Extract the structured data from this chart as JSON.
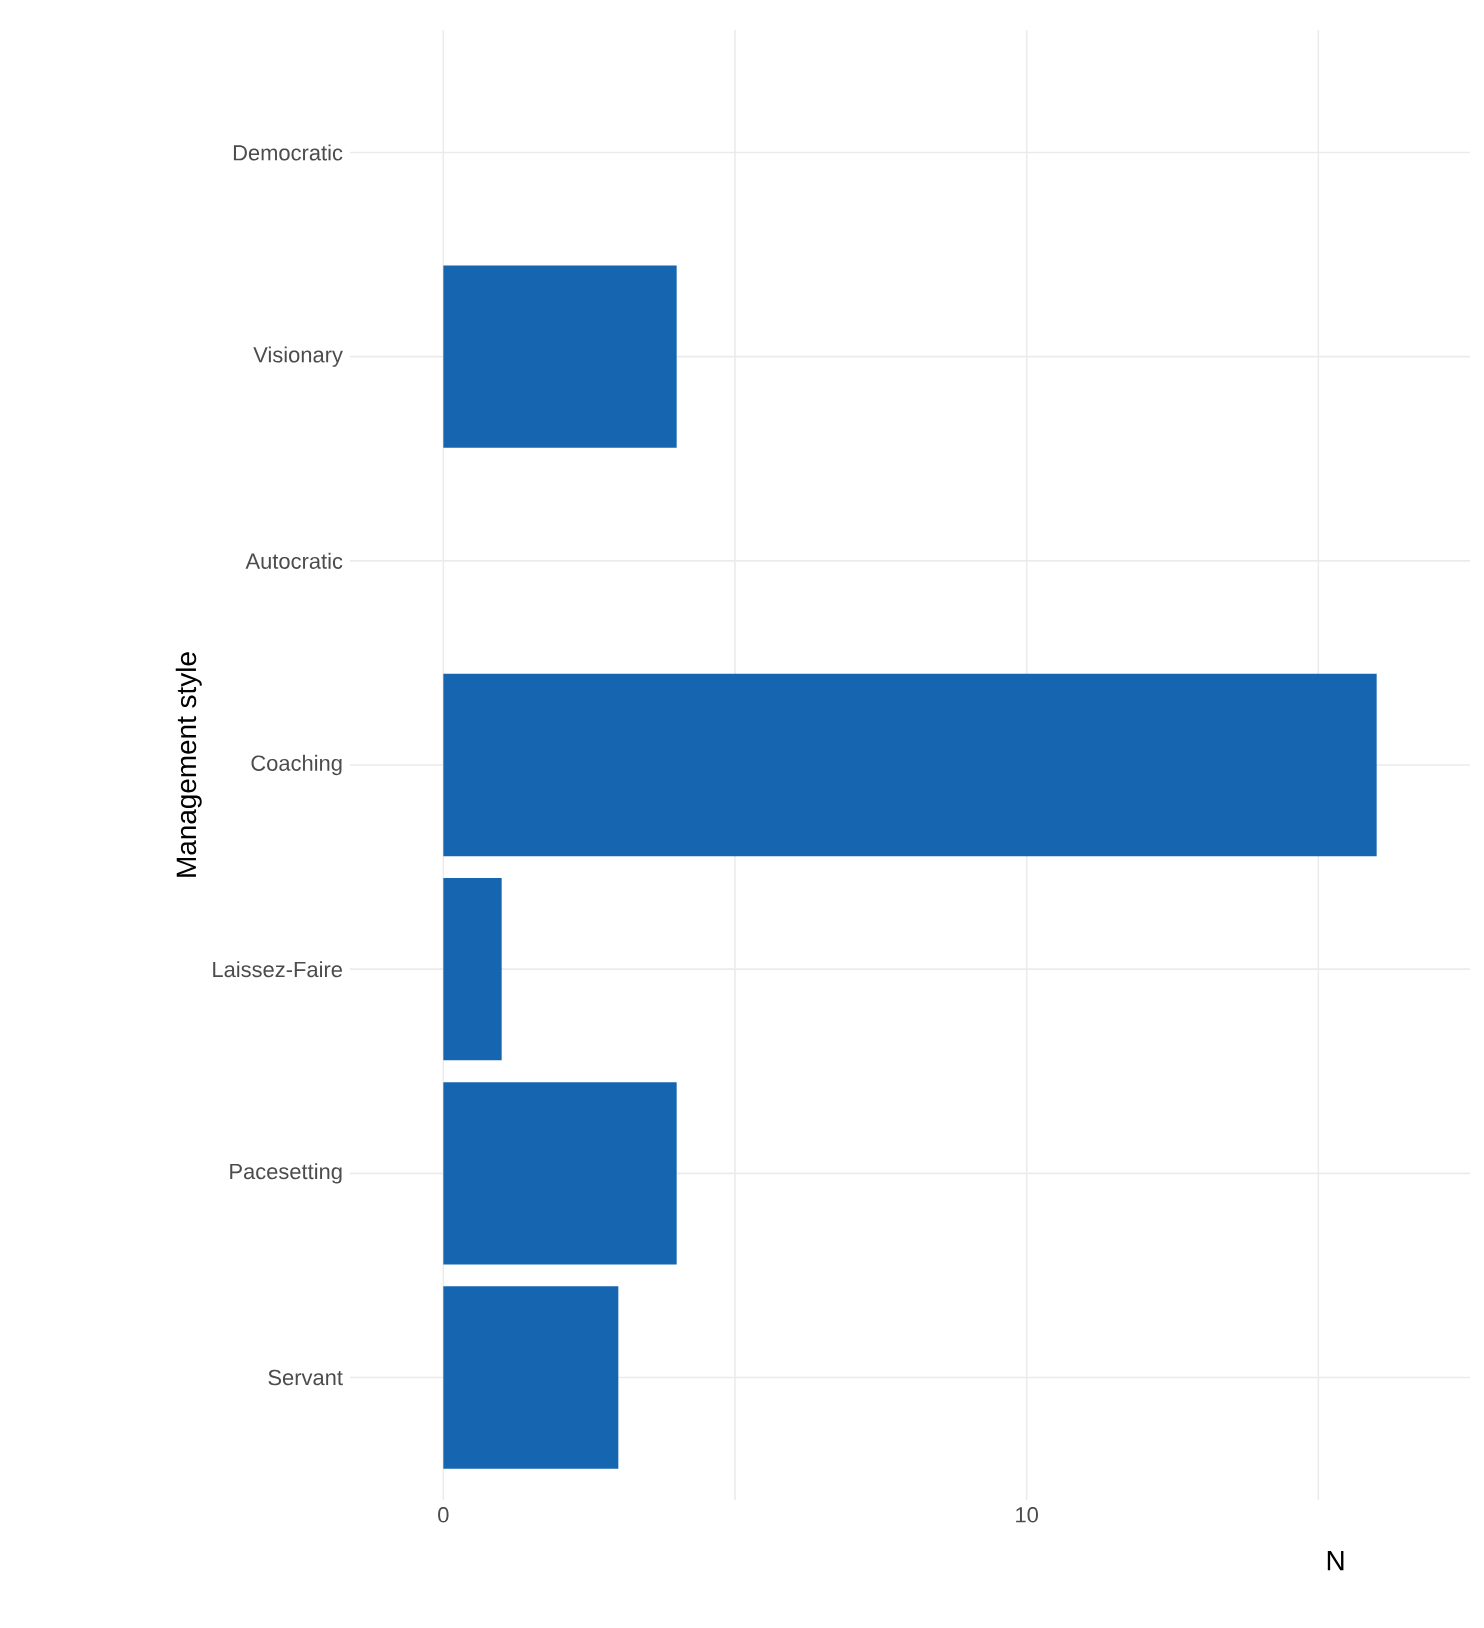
{
  "chart_data": {
    "type": "bar",
    "orientation": "horizontal",
    "xlabel": "N",
    "ylabel": "Management style",
    "categories": [
      "Democratic",
      "Visionary",
      "Autocratic",
      "Coaching",
      "Laissez-Faire",
      "Pacesetting",
      "Servant"
    ],
    "values": [
      0,
      4,
      0,
      16,
      1,
      4,
      3
    ],
    "color": "#1565b0",
    "xlim": [
      -1.6,
      17.6
    ],
    "xticks": [
      0,
      {
        "value": 5,
        "label": null
      },
      10,
      {
        "value": 15,
        "label": null
      }
    ],
    "grid": true
  }
}
